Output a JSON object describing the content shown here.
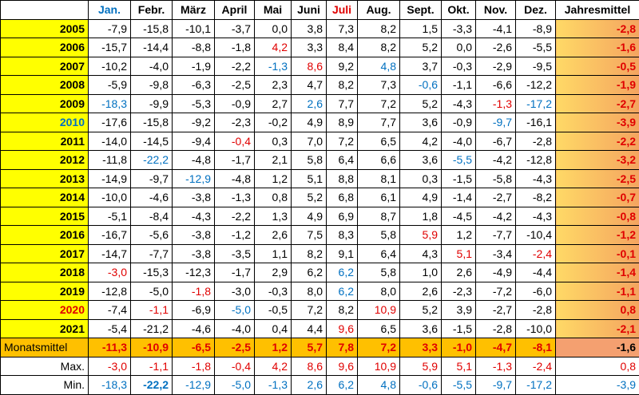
{
  "table": {
    "columns": [
      "Jan.",
      "Febr.",
      "März",
      "April",
      "Mai",
      "Juni",
      "Juli",
      "Aug.",
      "Sept.",
      "Okt.",
      "Nov.",
      "Dez.",
      "Jahresmittel"
    ],
    "rows": [
      [
        "2005",
        "-7,9",
        "-15,8",
        "-10,1",
        "-3,7",
        "0,0",
        "3,8",
        "7,3",
        "8,2",
        "1,5",
        "-3,3",
        "-4,1",
        "-8,9",
        "-2,8"
      ],
      [
        "2006",
        "-15,7",
        "-14,4",
        "-8,8",
        "-1,8",
        "4,2",
        "3,3",
        "8,4",
        "8,2",
        "5,2",
        "0,0",
        "-2,6",
        "-5,5",
        "-1,6"
      ],
      [
        "2007",
        "-10,2",
        "-4,0",
        "-1,9",
        "-2,2",
        "-1,3",
        "8,6",
        "9,2",
        "4,8",
        "3,7",
        "-0,3",
        "-2,9",
        "-9,5",
        "-0,5"
      ],
      [
        "2008",
        "-5,9",
        "-9,8",
        "-6,3",
        "-2,5",
        "2,3",
        "4,7",
        "8,2",
        "7,3",
        "-0,6",
        "-1,1",
        "-6,6",
        "-12,2",
        "-1,9"
      ],
      [
        "2009",
        "-18,3",
        "-9,9",
        "-5,3",
        "-0,9",
        "2,7",
        "2,6",
        "7,7",
        "7,2",
        "5,2",
        "-4,3",
        "-1,3",
        "-17,2",
        "-2,7"
      ],
      [
        "2010",
        "-17,6",
        "-15,8",
        "-9,2",
        "-2,3",
        "-0,2",
        "4,9",
        "8,9",
        "7,7",
        "3,6",
        "-0,9",
        "-9,7",
        "-16,1",
        "-3,9"
      ],
      [
        "2011",
        "-14,0",
        "-14,5",
        "-9,4",
        "-0,4",
        "0,3",
        "7,0",
        "7,2",
        "6,5",
        "4,2",
        "-4,0",
        "-6,7",
        "-2,8",
        "-2,2"
      ],
      [
        "2012",
        "-11,8",
        "-22,2",
        "-4,8",
        "-1,7",
        "2,1",
        "5,8",
        "6,4",
        "6,6",
        "3,6",
        "-5,5",
        "-4,2",
        "-12,8",
        "-3,2"
      ],
      [
        "2013",
        "-14,9",
        "-9,7",
        "-12,9",
        "-4,8",
        "1,2",
        "5,1",
        "8,8",
        "8,1",
        "0,3",
        "-1,5",
        "-5,8",
        "-4,3",
        "-2,5"
      ],
      [
        "2014",
        "-10,0",
        "-4,6",
        "-3,8",
        "-1,3",
        "0,8",
        "5,2",
        "6,8",
        "6,1",
        "4,9",
        "-1,4",
        "-2,7",
        "-8,2",
        "-0,7"
      ],
      [
        "2015",
        "-5,1",
        "-8,4",
        "-4,3",
        "-2,2",
        "1,3",
        "4,9",
        "6,9",
        "8,7",
        "1,8",
        "-4,5",
        "-4,2",
        "-4,3",
        "-0,8"
      ],
      [
        "2016",
        "-16,7",
        "-5,6",
        "-3,8",
        "-1,2",
        "2,6",
        "7,5",
        "8,3",
        "5,8",
        "5,9",
        "1,2",
        "-7,7",
        "-10,4",
        "-1,2"
      ],
      [
        "2017",
        "-14,7",
        "-7,7",
        "-3,8",
        "-3,5",
        "1,1",
        "8,2",
        "9,1",
        "6,4",
        "4,3",
        "5,1",
        "-3,4",
        "-2,4",
        "-0,1"
      ],
      [
        "2018",
        "-3,0",
        "-15,3",
        "-12,3",
        "-1,7",
        "2,9",
        "6,2",
        "6,2",
        "5,8",
        "1,0",
        "2,6",
        "-4,9",
        "-4,4",
        "-1,4"
      ],
      [
        "2019",
        "-12,8",
        "-5,0",
        "-1,8",
        "-3,0",
        "-0,3",
        "8,0",
        "6,2",
        "8,0",
        "2,6",
        "-2,3",
        "-7,2",
        "-6,0",
        "-1,1"
      ],
      [
        "2020",
        "-7,4",
        "-1,1",
        "-6,9",
        "-5,0",
        "-0,5",
        "7,2",
        "8,2",
        "10,9",
        "5,2",
        "3,9",
        "-2,7",
        "-2,8",
        "0,8"
      ],
      [
        "2021",
        "-5,4",
        "-21,2",
        "-4,6",
        "-4,0",
        "0,4",
        "4,4",
        "9,6",
        "6,5",
        "3,6",
        "-1,5",
        "-2,8",
        "-10,0",
        "-2,1"
      ]
    ],
    "mean": [
      "Monatsmittel",
      "-11,3",
      "-10,9",
      "-6,5",
      "-2,5",
      "1,2",
      "5,7",
      "7,8",
      "7,2",
      "3,3",
      "-1,0",
      "-4,7",
      "-8,1",
      "-1,6"
    ],
    "max": [
      "Max.",
      "-3,0",
      "-1,1",
      "-1,8",
      "-0,4",
      "4,2",
      "8,6",
      "9,6",
      "10,9",
      "5,9",
      "5,1",
      "-1,3",
      "-2,4",
      "0,8"
    ],
    "min": [
      "Min.",
      "-18,3",
      "-22,2",
      "-12,9",
      "-5,0",
      "-1,3",
      "2,6",
      "6,2",
      "4,8",
      "-0,6",
      "-5,5",
      "-9,7",
      "-17,2",
      "-3,9"
    ]
  }
}
